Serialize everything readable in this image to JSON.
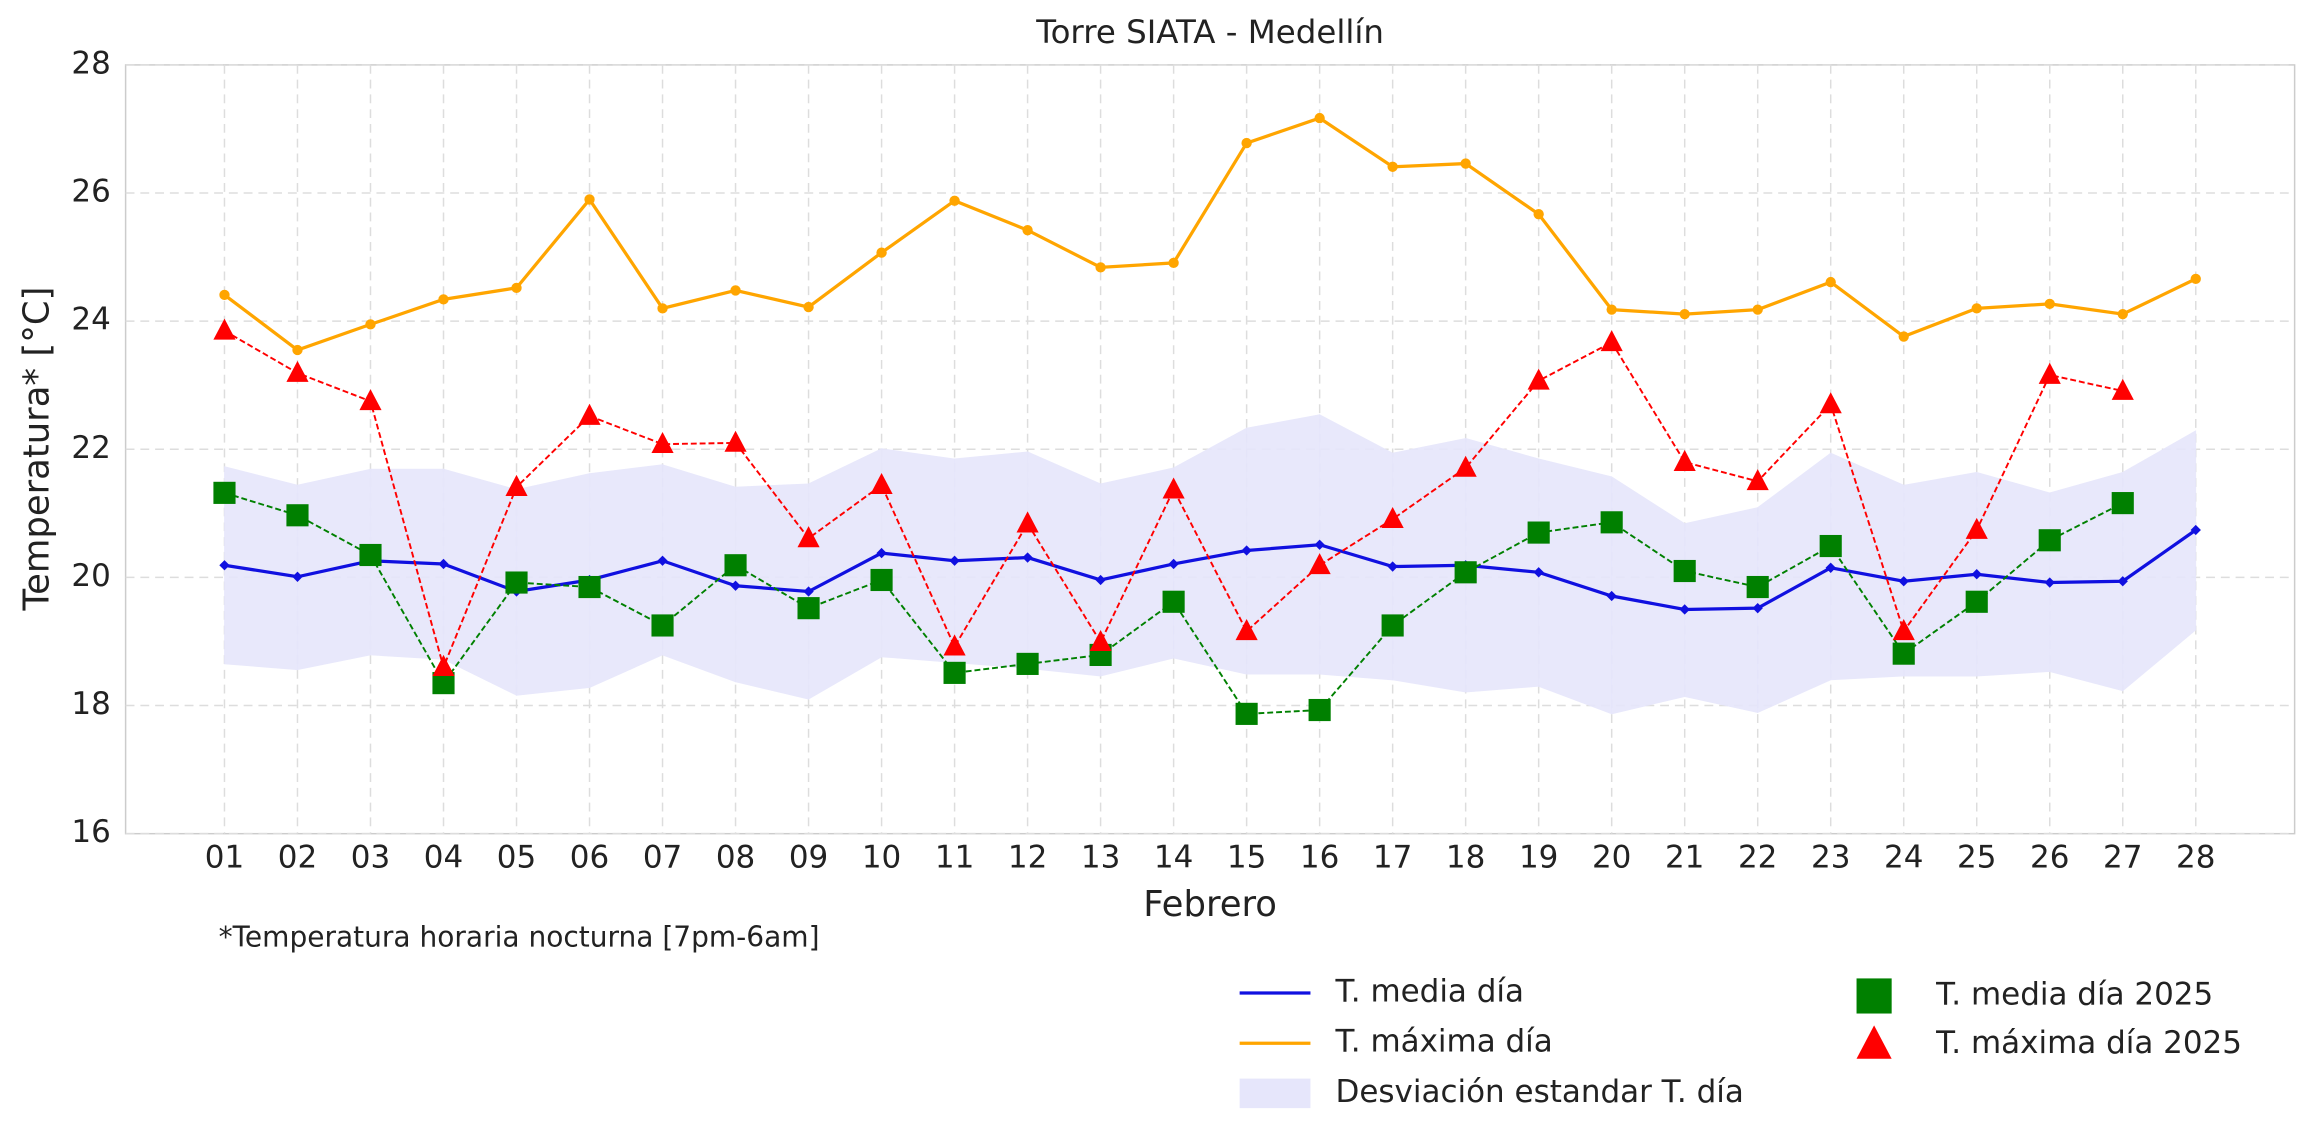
{
  "chart_data": {
    "type": "line",
    "title": "Torre SIATA - Medellín",
    "xlabel": "Febrero",
    "ylabel": "Temperatura* [°C]",
    "note": "*Temperatura horaria nocturna [7pm-6am]",
    "categories": [
      "01",
      "02",
      "03",
      "04",
      "05",
      "06",
      "07",
      "08",
      "09",
      "10",
      "11",
      "12",
      "13",
      "14",
      "15",
      "16",
      "17",
      "18",
      "19",
      "20",
      "21",
      "22",
      "23",
      "24",
      "25",
      "26",
      "27",
      "28"
    ],
    "ylim": [
      16,
      28
    ],
    "yticks": [
      16,
      18,
      20,
      22,
      24,
      26,
      28
    ],
    "grid": true,
    "legend": "lower right",
    "band": {
      "name": "Desviación estandar T. día",
      "color": "#e6e6fb",
      "upper": [
        21.73,
        21.44,
        21.69,
        21.69,
        21.37,
        21.62,
        21.76,
        21.41,
        21.46,
        22.01,
        21.85,
        21.96,
        21.46,
        21.71,
        22.33,
        22.54,
        21.94,
        22.17,
        21.85,
        21.57,
        20.84,
        21.09,
        21.94,
        21.44,
        21.64,
        21.32,
        21.64,
        22.29
      ],
      "lower": [
        18.65,
        18.56,
        18.79,
        18.72,
        18.16,
        18.28,
        18.79,
        18.37,
        18.1,
        18.76,
        18.67,
        18.58,
        18.46,
        18.74,
        18.49,
        18.49,
        18.4,
        18.21,
        18.3,
        17.87,
        18.14,
        17.89,
        18.4,
        18.46,
        18.46,
        18.53,
        18.23,
        19.18
      ]
    },
    "series": [
      {
        "name": "T. media día",
        "color": "#1010e0",
        "marker": "diamond",
        "linestyle": "solid",
        "values": [
          20.19,
          20.01,
          20.26,
          20.21,
          19.78,
          19.96,
          20.26,
          19.87,
          19.78,
          20.38,
          20.26,
          20.31,
          19.96,
          20.21,
          20.42,
          20.51,
          20.17,
          20.19,
          20.08,
          19.71,
          19.5,
          19.52,
          20.15,
          19.94,
          20.05,
          19.92,
          19.94,
          20.74
        ]
      },
      {
        "name": "T. máxima día",
        "color": "#ffa500",
        "marker": "circle",
        "linestyle": "solid",
        "values": [
          24.41,
          23.55,
          23.95,
          24.34,
          24.52,
          25.9,
          24.2,
          24.48,
          24.22,
          25.07,
          25.88,
          25.42,
          24.84,
          24.91,
          26.78,
          27.17,
          26.41,
          26.46,
          25.67,
          24.18,
          24.11,
          24.18,
          24.61,
          23.76,
          24.2,
          24.27,
          24.11,
          24.66
        ]
      },
      {
        "name": "T. media día 2025",
        "color": "#008000",
        "marker": "square",
        "linestyle": "dashed",
        "values": [
          21.32,
          20.97,
          20.35,
          18.35,
          19.92,
          19.85,
          19.25,
          20.19,
          19.52,
          19.96,
          18.51,
          18.65,
          18.79,
          19.62,
          17.87,
          17.93,
          19.25,
          20.08,
          20.7,
          20.86,
          20.1,
          19.85,
          20.49,
          18.81,
          19.62,
          20.58,
          21.16,
          null
        ]
      },
      {
        "name": "T. máxima día 2025",
        "color": "#ff0000",
        "marker": "triangle",
        "linestyle": "dashed",
        "values": [
          23.85,
          23.19,
          22.75,
          18.6,
          21.41,
          22.52,
          22.08,
          22.1,
          20.61,
          21.44,
          18.92,
          20.84,
          18.99,
          21.37,
          19.16,
          20.19,
          20.91,
          21.71,
          23.07,
          23.67,
          21.8,
          21.5,
          22.7,
          19.16,
          20.74,
          23.16,
          22.91,
          null
        ]
      }
    ]
  }
}
